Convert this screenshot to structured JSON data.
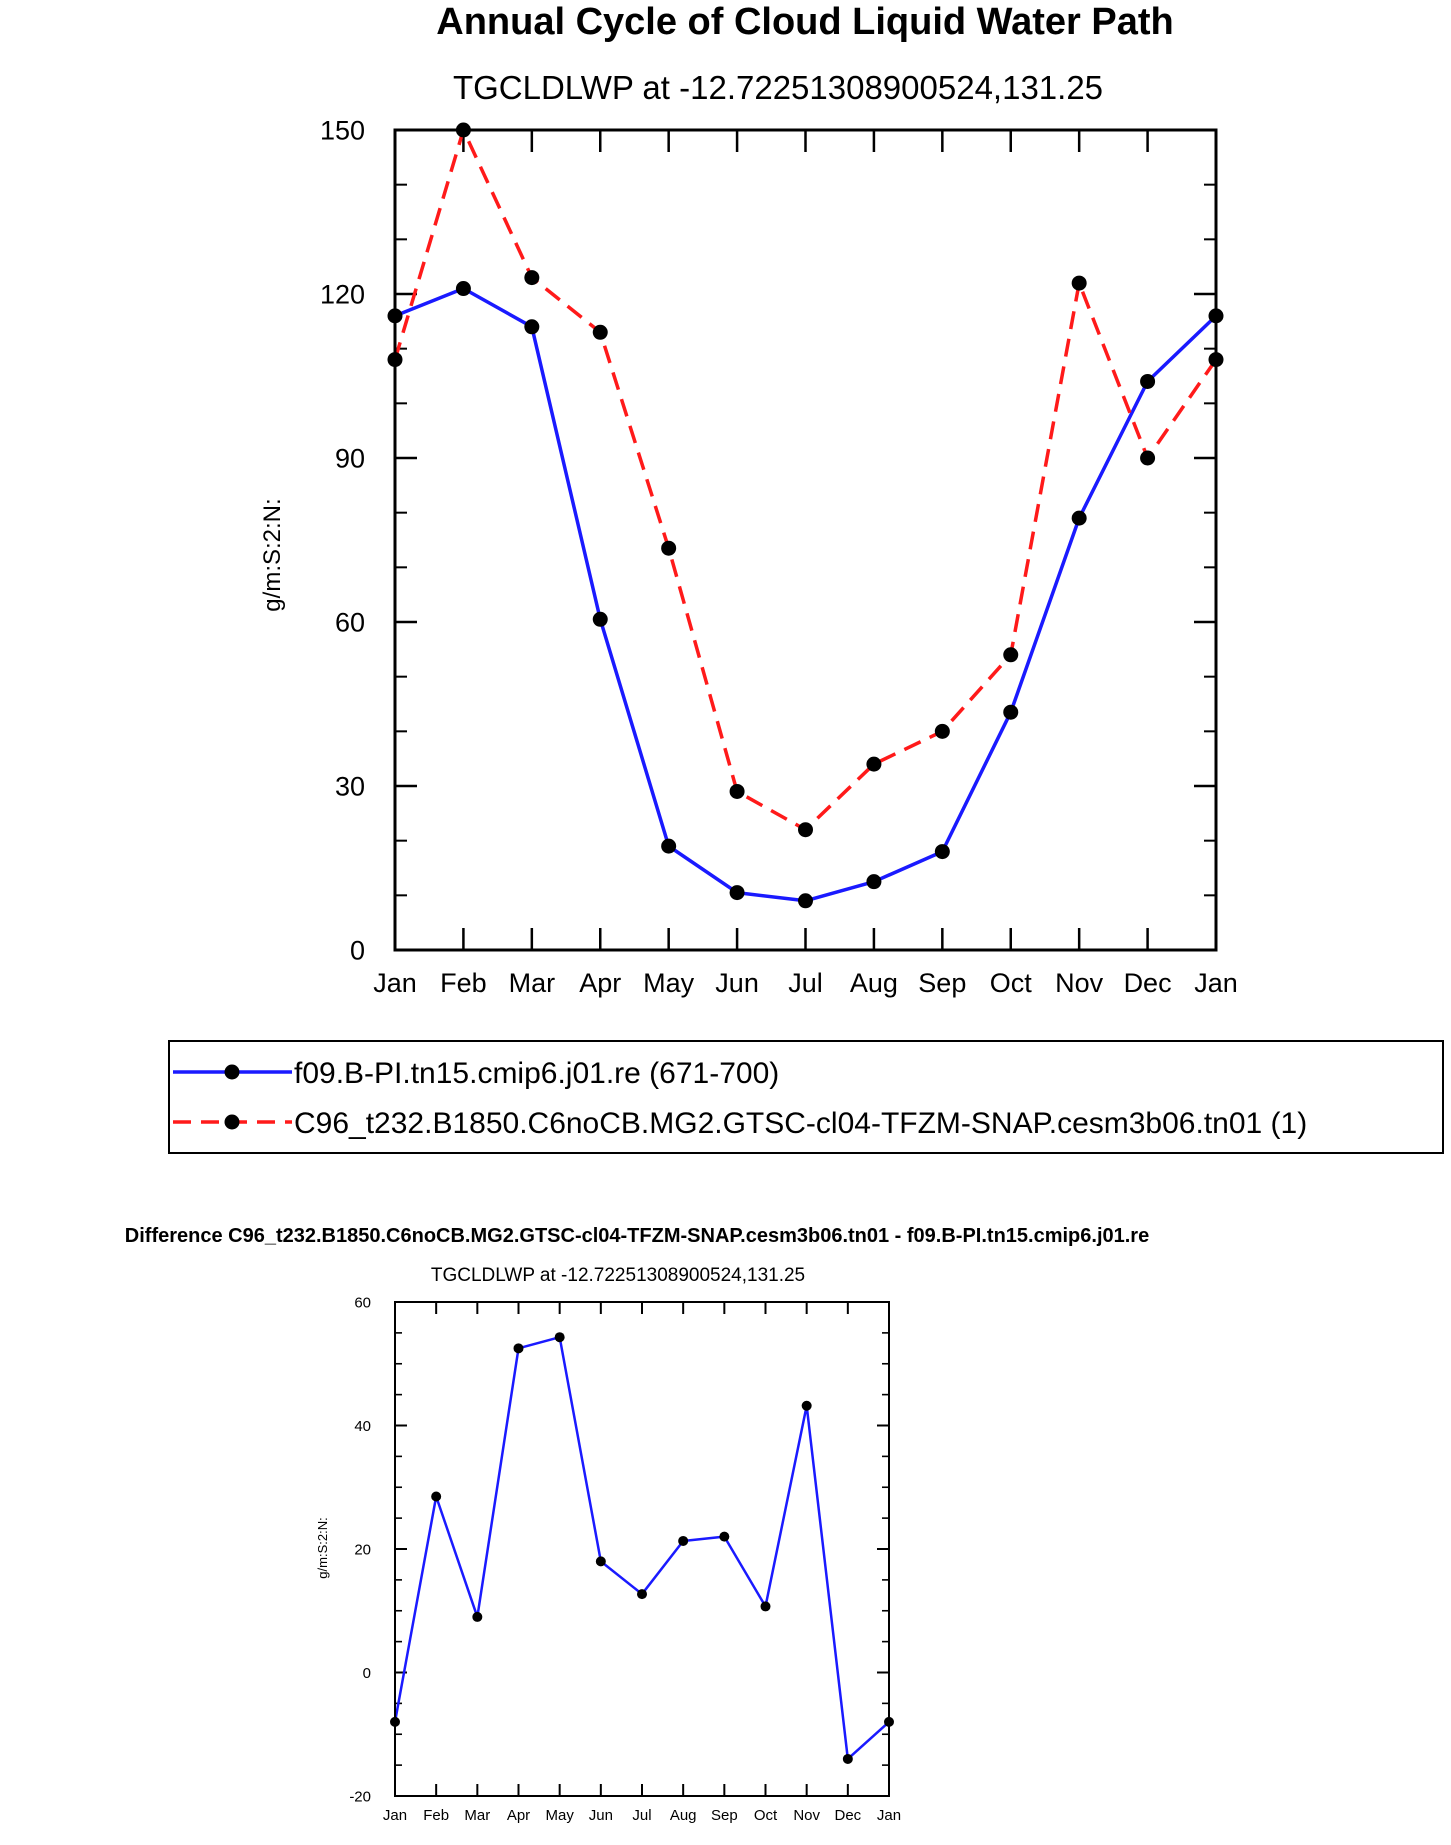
{
  "chart_data": [
    {
      "type": "line",
      "title": "Annual Cycle of Cloud Liquid Water Path",
      "subtitle": "TGCLDLWP at -12.72251308900524,131.25",
      "xlabel": "",
      "ylabel": "g/m:S:2:N:",
      "categories": [
        "Jan",
        "Feb",
        "Mar",
        "Apr",
        "May",
        "Jun",
        "Jul",
        "Aug",
        "Sep",
        "Oct",
        "Nov",
        "Dec",
        "Jan"
      ],
      "ylim": [
        0,
        150
      ],
      "yticks": [
        0,
        30,
        60,
        90,
        120,
        150
      ],
      "series": [
        {
          "name": "f09.B-PI.tn15.cmip6.j01.re (671-700)",
          "color": "#1a1aff",
          "dash": "solid",
          "values": [
            116,
            121,
            114,
            60.5,
            19,
            10.5,
            9,
            12.5,
            18,
            43.5,
            79,
            104,
            116
          ]
        },
        {
          "name": "C96_t232.B1850.C6noCB.MG2.GTSC-cl04-TFZM-SNAP.cesm3b06.tn01 (1)",
          "color": "#ff1a1a",
          "dash": "dashed",
          "values": [
            108,
            150,
            123,
            113,
            73.5,
            29,
            22,
            34,
            40,
            54,
            122,
            90,
            108
          ]
        }
      ]
    },
    {
      "type": "line",
      "title": "Difference C96_t232.B1850.C6noCB.MG2.GTSC-cl04-TFZM-SNAP.cesm3b06.tn01 - f09.B-PI.tn15.cmip6.j01.re",
      "subtitle": "TGCLDLWP at -12.72251308900524,131.25",
      "xlabel": "",
      "ylabel": "g/m:S:2:N:",
      "categories": [
        "Jan",
        "Feb",
        "Mar",
        "Apr",
        "May",
        "Jun",
        "Jul",
        "Aug",
        "Sep",
        "Oct",
        "Nov",
        "Dec",
        "Jan"
      ],
      "ylim": [
        -20,
        60
      ],
      "yticks": [
        -20,
        0,
        20,
        40,
        60
      ],
      "series": [
        {
          "name": "Difference",
          "color": "#1a1aff",
          "dash": "solid",
          "values": [
            -8,
            28.5,
            9,
            52.5,
            54.3,
            18,
            12.7,
            21.3,
            22,
            10.7,
            43.2,
            -14,
            -8
          ]
        }
      ]
    }
  ]
}
